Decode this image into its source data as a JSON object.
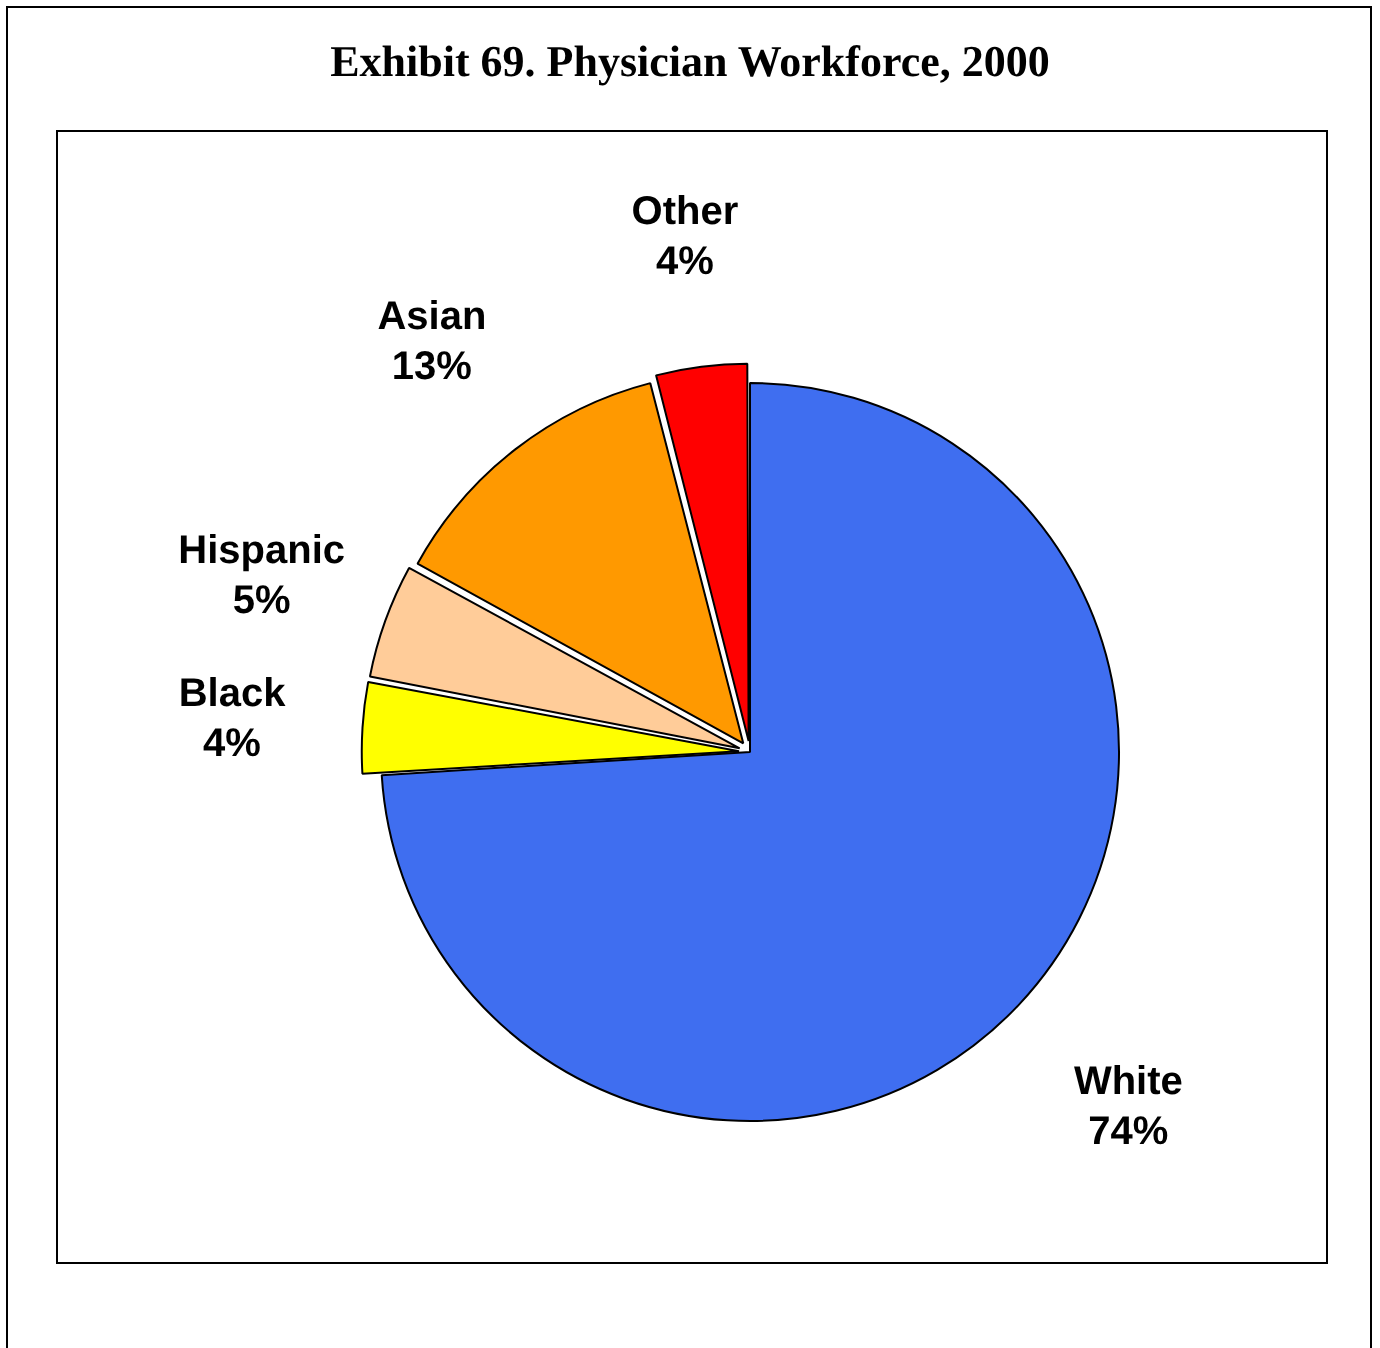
{
  "chart_data": {
    "type": "pie",
    "title": "Exhibit 69. Physician Workforce, 2000",
    "categories": [
      "White",
      "Black",
      "Hispanic",
      "Asian",
      "Other"
    ],
    "values": [
      74,
      4,
      5,
      13,
      4
    ],
    "colors": [
      "#3f6ef0",
      "#ffff00",
      "#ffcc99",
      "#ff9900",
      "#ff0000"
    ],
    "value_labels": [
      "74%",
      "4%",
      "5%",
      "13%",
      "4%"
    ],
    "legend": false
  }
}
